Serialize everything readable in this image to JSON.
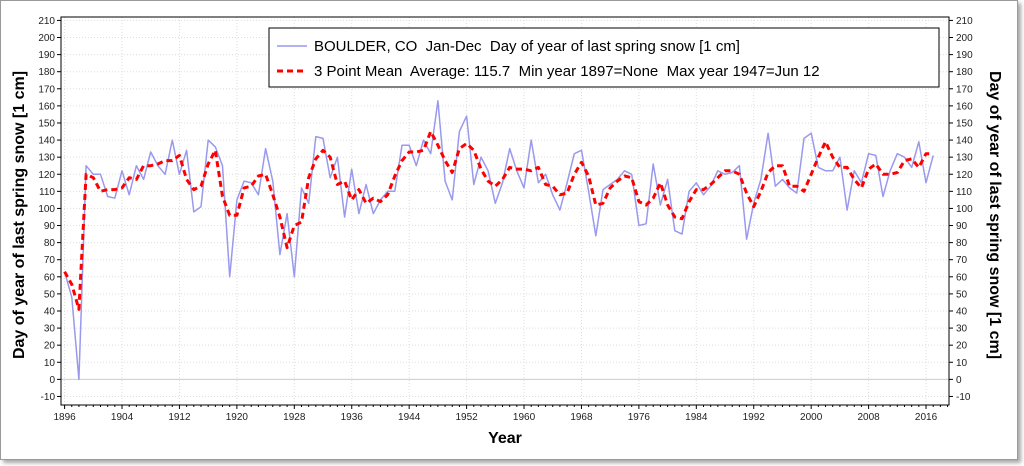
{
  "chart_data": {
    "type": "line",
    "xlabel": "Year",
    "ylabel_left": "Day of year of last spring snow [1 cm]",
    "ylabel_right": "Day of year of last spring snow [1 cm]",
    "xlim": [
      1895.5,
      2019.2
    ],
    "ylim": [
      -15,
      212
    ],
    "x_ticks": [
      1896,
      1904,
      1912,
      1920,
      1928,
      1936,
      1944,
      1952,
      1960,
      1968,
      1976,
      1984,
      1992,
      2000,
      2008,
      2016
    ],
    "y_ticks": [
      -10,
      0,
      10,
      20,
      30,
      40,
      50,
      60,
      70,
      80,
      90,
      100,
      110,
      120,
      130,
      140,
      150,
      160,
      170,
      180,
      190,
      200,
      210
    ],
    "grid": true,
    "legend_position": "top-right",
    "series": [
      {
        "name": "BOULDER, CO  Jan-Dec  Day of year of last spring snow [1 cm]",
        "color": "#9999ee",
        "style": "solid",
        "x_start": 1896,
        "values": [
          63,
          48,
          0,
          125,
          120,
          120,
          107,
          106,
          122,
          108,
          125,
          117,
          133,
          125,
          120,
          140,
          120,
          134,
          98,
          101,
          140,
          136,
          125,
          60,
          105,
          116,
          115,
          108,
          135,
          116,
          73,
          97,
          60,
          112,
          103,
          142,
          141,
          118,
          130,
          95,
          123,
          97,
          114,
          97,
          105,
          110,
          110,
          137,
          137,
          125,
          140,
          132,
          163,
          116,
          105,
          145,
          154,
          114,
          130,
          122,
          103,
          115,
          135,
          122,
          112,
          140,
          115,
          120,
          108,
          99,
          115,
          132,
          134,
          110,
          84,
          111,
          114,
          117,
          122,
          120,
          90,
          91,
          126,
          102,
          117,
          87,
          85,
          110,
          115,
          108,
          113,
          122,
          120,
          121,
          125,
          82,
          103,
          117,
          144,
          113,
          117,
          112,
          109,
          141,
          144,
          124,
          122,
          122,
          130,
          99,
          122,
          115,
          132,
          131,
          107,
          122,
          132,
          130,
          124,
          139,
          115,
          131
        ]
      },
      {
        "name": "3 Point Mean  Average: 115.7  Min year 1897=None  Max year 1947=Jun 12",
        "color": "#ff0000",
        "style": "dashed",
        "x_start": 1896,
        "values": [
          63,
          55.5,
          41,
          120,
          118,
          110,
          111,
          111,
          112,
          118,
          117,
          125,
          125,
          126,
          128,
          128,
          131,
          117,
          111,
          113,
          126,
          134,
          107,
          96,
          96,
          112,
          113,
          119,
          120,
          108,
          95,
          77,
          90,
          92,
          118,
          129,
          134,
          130,
          114,
          116,
          105,
          111,
          103,
          106,
          104,
          108,
          119,
          128,
          133,
          133,
          134,
          145,
          137,
          128,
          121,
          135,
          138,
          134,
          123,
          116,
          113,
          117,
          124,
          123,
          123,
          122,
          124,
          114,
          113,
          108,
          109,
          120,
          127,
          119,
          102,
          103,
          112,
          116,
          119,
          118,
          104,
          102,
          106,
          115,
          102,
          95,
          94,
          104,
          111,
          111,
          114,
          118,
          122,
          122,
          120,
          109,
          101,
          110,
          121,
          125,
          125,
          113,
          113,
          110,
          120,
          130,
          139,
          130,
          124,
          124,
          117,
          112,
          123,
          126,
          120,
          120,
          121,
          128,
          129,
          124,
          132,
          132
        ]
      }
    ]
  },
  "colors": {
    "raw_line": "#9999ee",
    "mean_line": "#ff0000",
    "grid": "#dddddd",
    "zero_line": "#cccccc"
  }
}
